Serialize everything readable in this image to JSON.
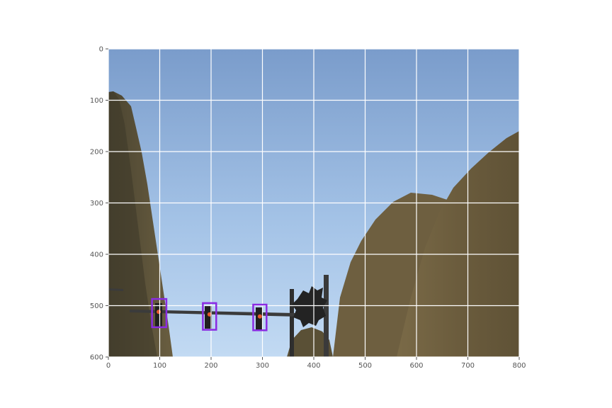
{
  "chart_data": {
    "type": "image",
    "title": "",
    "xlabel": "",
    "ylabel": "",
    "xlim": [
      0,
      800
    ],
    "ylim": [
      600,
      0
    ],
    "x_ticks": [
      0,
      100,
      200,
      300,
      400,
      500,
      600,
      700,
      800
    ],
    "y_ticks": [
      0,
      100,
      200,
      300,
      400,
      500,
      600
    ],
    "grid": true,
    "grid_color": "#ffffff",
    "box_color": "#8a2be2",
    "boxes": [
      {
        "xmin": 85,
        "ymin": 487,
        "xmax": 113,
        "ymax": 542
      },
      {
        "xmin": 184,
        "ymin": 495,
        "xmax": 210,
        "ymax": 547
      },
      {
        "xmin": 282,
        "ymin": 498,
        "xmax": 308,
        "ymax": 548
      }
    ],
    "traffic_lights": [
      {
        "x": 98,
        "y": 512,
        "color": "#e4572e"
      },
      {
        "x": 197,
        "y": 517,
        "color": "#e4572e"
      },
      {
        "x": 295,
        "y": 521,
        "color": "#e4572e"
      }
    ]
  }
}
